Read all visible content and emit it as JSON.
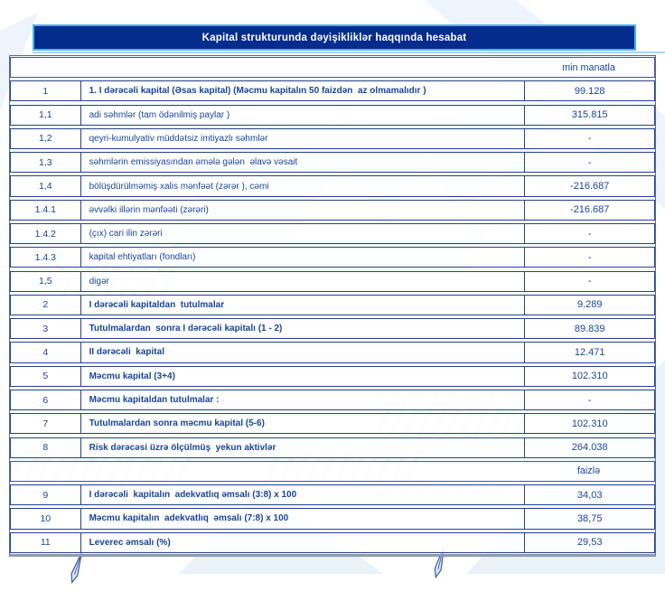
{
  "title": "Kapital strukturunda dəyişikliklər haqqında hesabat",
  "units": {
    "money_label": "min manatla",
    "percent_label": "faizlə"
  },
  "colors": {
    "title_bar_bg": "#052c8d",
    "title_bar_border": "#4ab3ea",
    "table_border": "#24418e",
    "text_blue": "#1a4496",
    "watermark_blue": "#e4eef8"
  },
  "table": {
    "columns": [
      "no",
      "label",
      "value"
    ],
    "rows": [
      {
        "type": "unit",
        "text": "min manatla"
      },
      {
        "type": "data",
        "no": "1",
        "label": "1. I dərəcəli kapital (Əsas kapital) (Məcmu kapitalın 50 faizdən  az olmamalıdır )",
        "value": "99.128",
        "bold": true
      },
      {
        "type": "data",
        "no": "1,1",
        "label": "adi səhmlər (tam ödənilmiş paylar )",
        "value": "315.815",
        "bold": false
      },
      {
        "type": "data",
        "no": "1,2",
        "label": "qeyri-kumulyativ müddətsiz imtiyazlı səhmlər",
        "value": "-",
        "bold": false
      },
      {
        "type": "data",
        "no": "1,3",
        "label": "səhmlərin emissiyasından əmələ gələn  əlavə vəsait",
        "value": "-",
        "bold": false
      },
      {
        "type": "data",
        "no": "1,4",
        "label": "bölüşdürülməmiş xalis mənfəət (zərər ), cəmi",
        "value": "-216.687",
        "bold": false
      },
      {
        "type": "data",
        "no": "1.4.1",
        "label": "əvvəlki illərin mənfəəti (zərəri)",
        "value": "-216.687",
        "bold": false
      },
      {
        "type": "data",
        "no": "1.4.2",
        "label": "(çıx) cari ilin zərəri",
        "value": "-",
        "bold": false
      },
      {
        "type": "data",
        "no": "1.4.3",
        "label": "kapital ehtiyatları (fondları)",
        "value": "-",
        "bold": false
      },
      {
        "type": "data",
        "no": "1,5",
        "label": "digər",
        "value": "-",
        "bold": false
      },
      {
        "type": "data",
        "no": "2",
        "label": "I dərəcəli kapitaldan  tutulmalar",
        "value": "9.289",
        "bold": true
      },
      {
        "type": "data",
        "no": "3",
        "label": "Tutulmalardan  sonra I dərəcəli kapitalı (1 - 2)",
        "value": "89.839",
        "bold": true
      },
      {
        "type": "data",
        "no": "4",
        "label": "II dərəcəli  kapital",
        "value": "12.471",
        "bold": true
      },
      {
        "type": "data",
        "no": "5",
        "label": "Məcmu kapital (3+4)",
        "value": "102.310",
        "bold": true
      },
      {
        "type": "data",
        "no": "6",
        "label": "Məcmu kapitaldan tutulmalar :",
        "value": "-",
        "bold": true
      },
      {
        "type": "data",
        "no": "7",
        "label": "Tutulmalardan sonra məcmu kapital (5-6)",
        "value": "102.310",
        "bold": true
      },
      {
        "type": "data",
        "no": "8",
        "label": "Risk dərəcəsi üzrə ölçülmüş  yekun aktivlər",
        "value": "264.038",
        "bold": true
      },
      {
        "type": "unit",
        "text": "faizlə"
      },
      {
        "type": "data",
        "no": "9",
        "label": "I dərəcəli  kapitalın  adekvatlıq əmsalı (3:8) x 100",
        "value": "34,03",
        "bold": true
      },
      {
        "type": "data",
        "no": "10",
        "label": "Məcmu kapitalın  adekvatlıq  əmsalı (7:8) x 100",
        "value": "38,75",
        "bold": true
      },
      {
        "type": "data",
        "no": "11",
        "label": "Leverec əmsalı (%)",
        "value": "29,53",
        "bold": true
      }
    ]
  },
  "footer": {
    "signature_icons": [
      "pen-icon",
      "pen-icon"
    ]
  }
}
